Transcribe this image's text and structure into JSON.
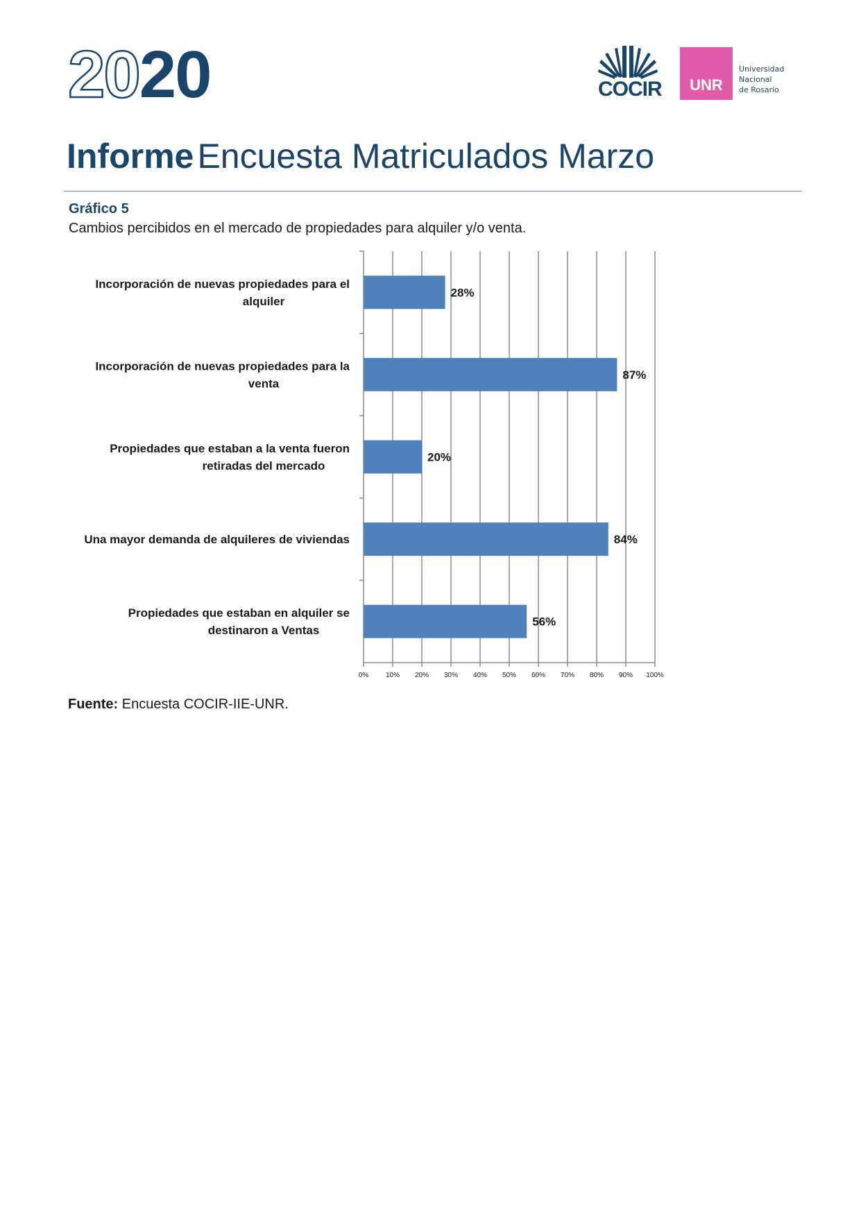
{
  "header": {
    "year_part1": "20",
    "year_part2": "20",
    "cocir_logo_text": "COCIR",
    "unr_logo_text": "UNR",
    "unr_name_lines": [
      "Universidad",
      "Nacional",
      "de Rosario"
    ],
    "brand_color": "#1a4469",
    "unr_color": "#e05ca8"
  },
  "report": {
    "title_bold": "Informe",
    "title_light": "Encuesta Matriculados Marzo"
  },
  "figure": {
    "label": "Gráfico 5",
    "caption": "Cambios percibidos en el mercado de propiedades para alquiler y/o venta."
  },
  "chart_data": {
    "type": "bar",
    "orientation": "horizontal",
    "categories": [
      [
        "Incorporación de nuevas propiedades para el",
        "alquiler"
      ],
      [
        "Incorporación de nuevas propiedades para la",
        "venta"
      ],
      [
        "Propiedades que estaban a la venta fueron",
        "retiradas del mercado"
      ],
      [
        "Una mayor demanda de alquileres de viviendas"
      ],
      [
        "Propiedades que estaban en alquiler se",
        "destinaron a Ventas"
      ]
    ],
    "values": [
      28,
      87,
      20,
      84,
      56
    ],
    "value_labels": [
      "28%",
      "87%",
      "20%",
      "84%",
      "56%"
    ],
    "xlim": [
      0,
      100
    ],
    "xticks": [
      0,
      10,
      20,
      30,
      40,
      50,
      60,
      70,
      80,
      90,
      100
    ],
    "xtick_labels": [
      "0%",
      "10%",
      "20%",
      "30%",
      "40%",
      "50%",
      "60%",
      "70%",
      "80%",
      "90%",
      "100%"
    ],
    "grid": true,
    "legend": "none",
    "bar_color": "#4f81bd"
  },
  "source": {
    "label": "Fuente:",
    "text": " Encuesta COCIR-IIE-UNR."
  }
}
